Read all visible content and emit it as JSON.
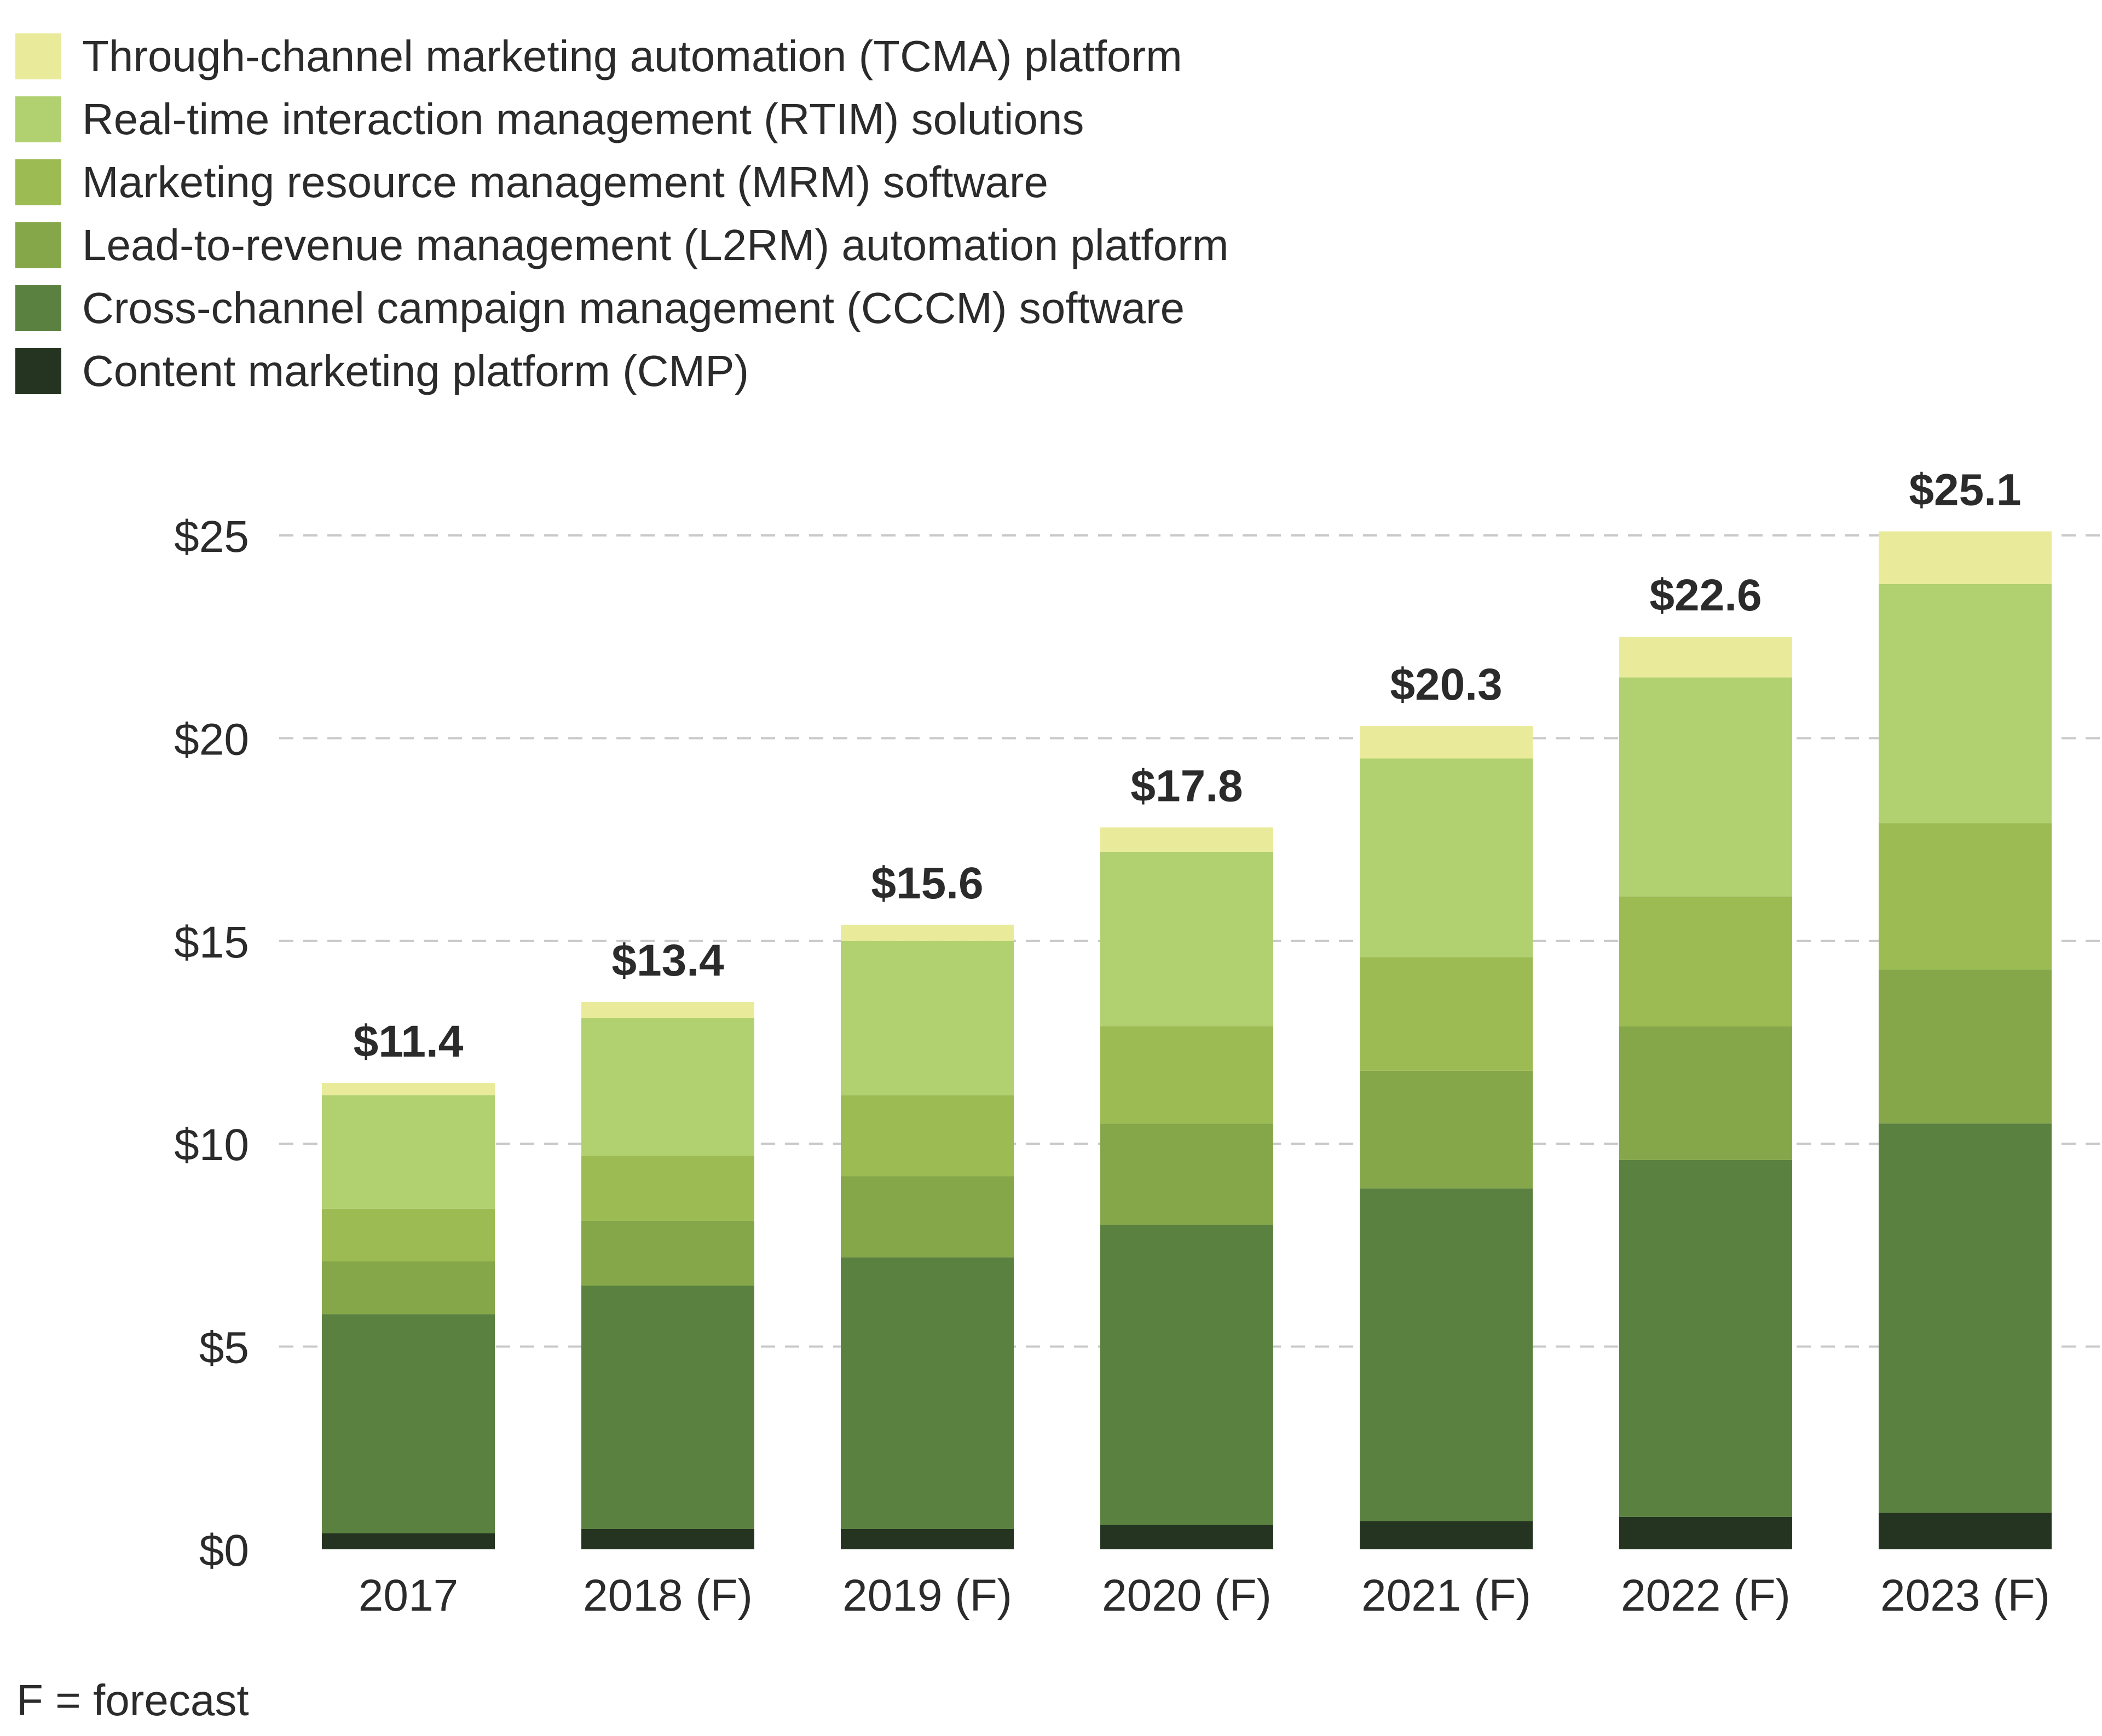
{
  "chart_data": {
    "type": "bar",
    "stacked": true,
    "categories": [
      "2017",
      "2018 (F)",
      "2019 (F)",
      "2020 (F)",
      "2021 (F)",
      "2022 (F)",
      "2023 (F)"
    ],
    "series": [
      {
        "name": "Content marketing platform (CMP)",
        "color": "#253420",
        "values": [
          0.4,
          0.5,
          0.5,
          0.6,
          0.7,
          0.8,
          0.9
        ]
      },
      {
        "name": "Cross-channel campaign management (CCCM) software",
        "color": "#5a8140",
        "values": [
          5.4,
          6.0,
          6.7,
          7.4,
          8.2,
          8.8,
          9.6
        ]
      },
      {
        "name": "Lead-to-revenue management (L2RM) automation platform",
        "color": "#85a74a",
        "values": [
          1.3,
          1.6,
          2.0,
          2.5,
          2.9,
          3.3,
          3.8
        ]
      },
      {
        "name": "Marketing resource management (MRM) software",
        "color": "#9cbb52",
        "values": [
          1.3,
          1.6,
          2.0,
          2.4,
          2.8,
          3.2,
          3.6
        ]
      },
      {
        "name": "Real-time interaction management (RTIM) solutions",
        "color": "#b1d06f",
        "values": [
          2.8,
          3.4,
          3.8,
          4.3,
          4.9,
          5.4,
          5.9
        ]
      },
      {
        "name": "Through-channel marketing automation (TCMA) platform",
        "color": "#eaeb9a",
        "values": [
          0.3,
          0.4,
          0.4,
          0.6,
          0.8,
          1.0,
          1.3
        ]
      }
    ],
    "totals": [
      "$11.4",
      "$13.4",
      "$15.6",
      "$17.8",
      "$20.3",
      "$22.6",
      "$25.1"
    ],
    "y_ticks": [
      {
        "value": 0,
        "label": "$0"
      },
      {
        "value": 5,
        "label": "$5"
      },
      {
        "value": 10,
        "label": "$10"
      },
      {
        "value": 15,
        "label": "$15"
      },
      {
        "value": 20,
        "label": "$20"
      },
      {
        "value": 25,
        "label": "$25"
      }
    ],
    "ylim": [
      0,
      25
    ],
    "grid": "dashed horizontal",
    "legend_position": "top-left",
    "title": "",
    "xlabel": "",
    "ylabel": ""
  },
  "legend": [
    {
      "label": "Through-channel marketing automation (TCMA) platform",
      "color": "#eaeb9a"
    },
    {
      "label": "Real-time interaction management (RTIM) solutions",
      "color": "#b1d06f"
    },
    {
      "label": "Marketing resource management (MRM) software",
      "color": "#9cbb52"
    },
    {
      "label": "Lead-to-revenue management (L2RM) automation platform",
      "color": "#85a74a"
    },
    {
      "label": "Cross-channel campaign management (CCCM) software",
      "color": "#5a8140"
    },
    {
      "label": "Content marketing platform (CMP)",
      "color": "#253420"
    }
  ],
  "footnote": "F = forecast"
}
